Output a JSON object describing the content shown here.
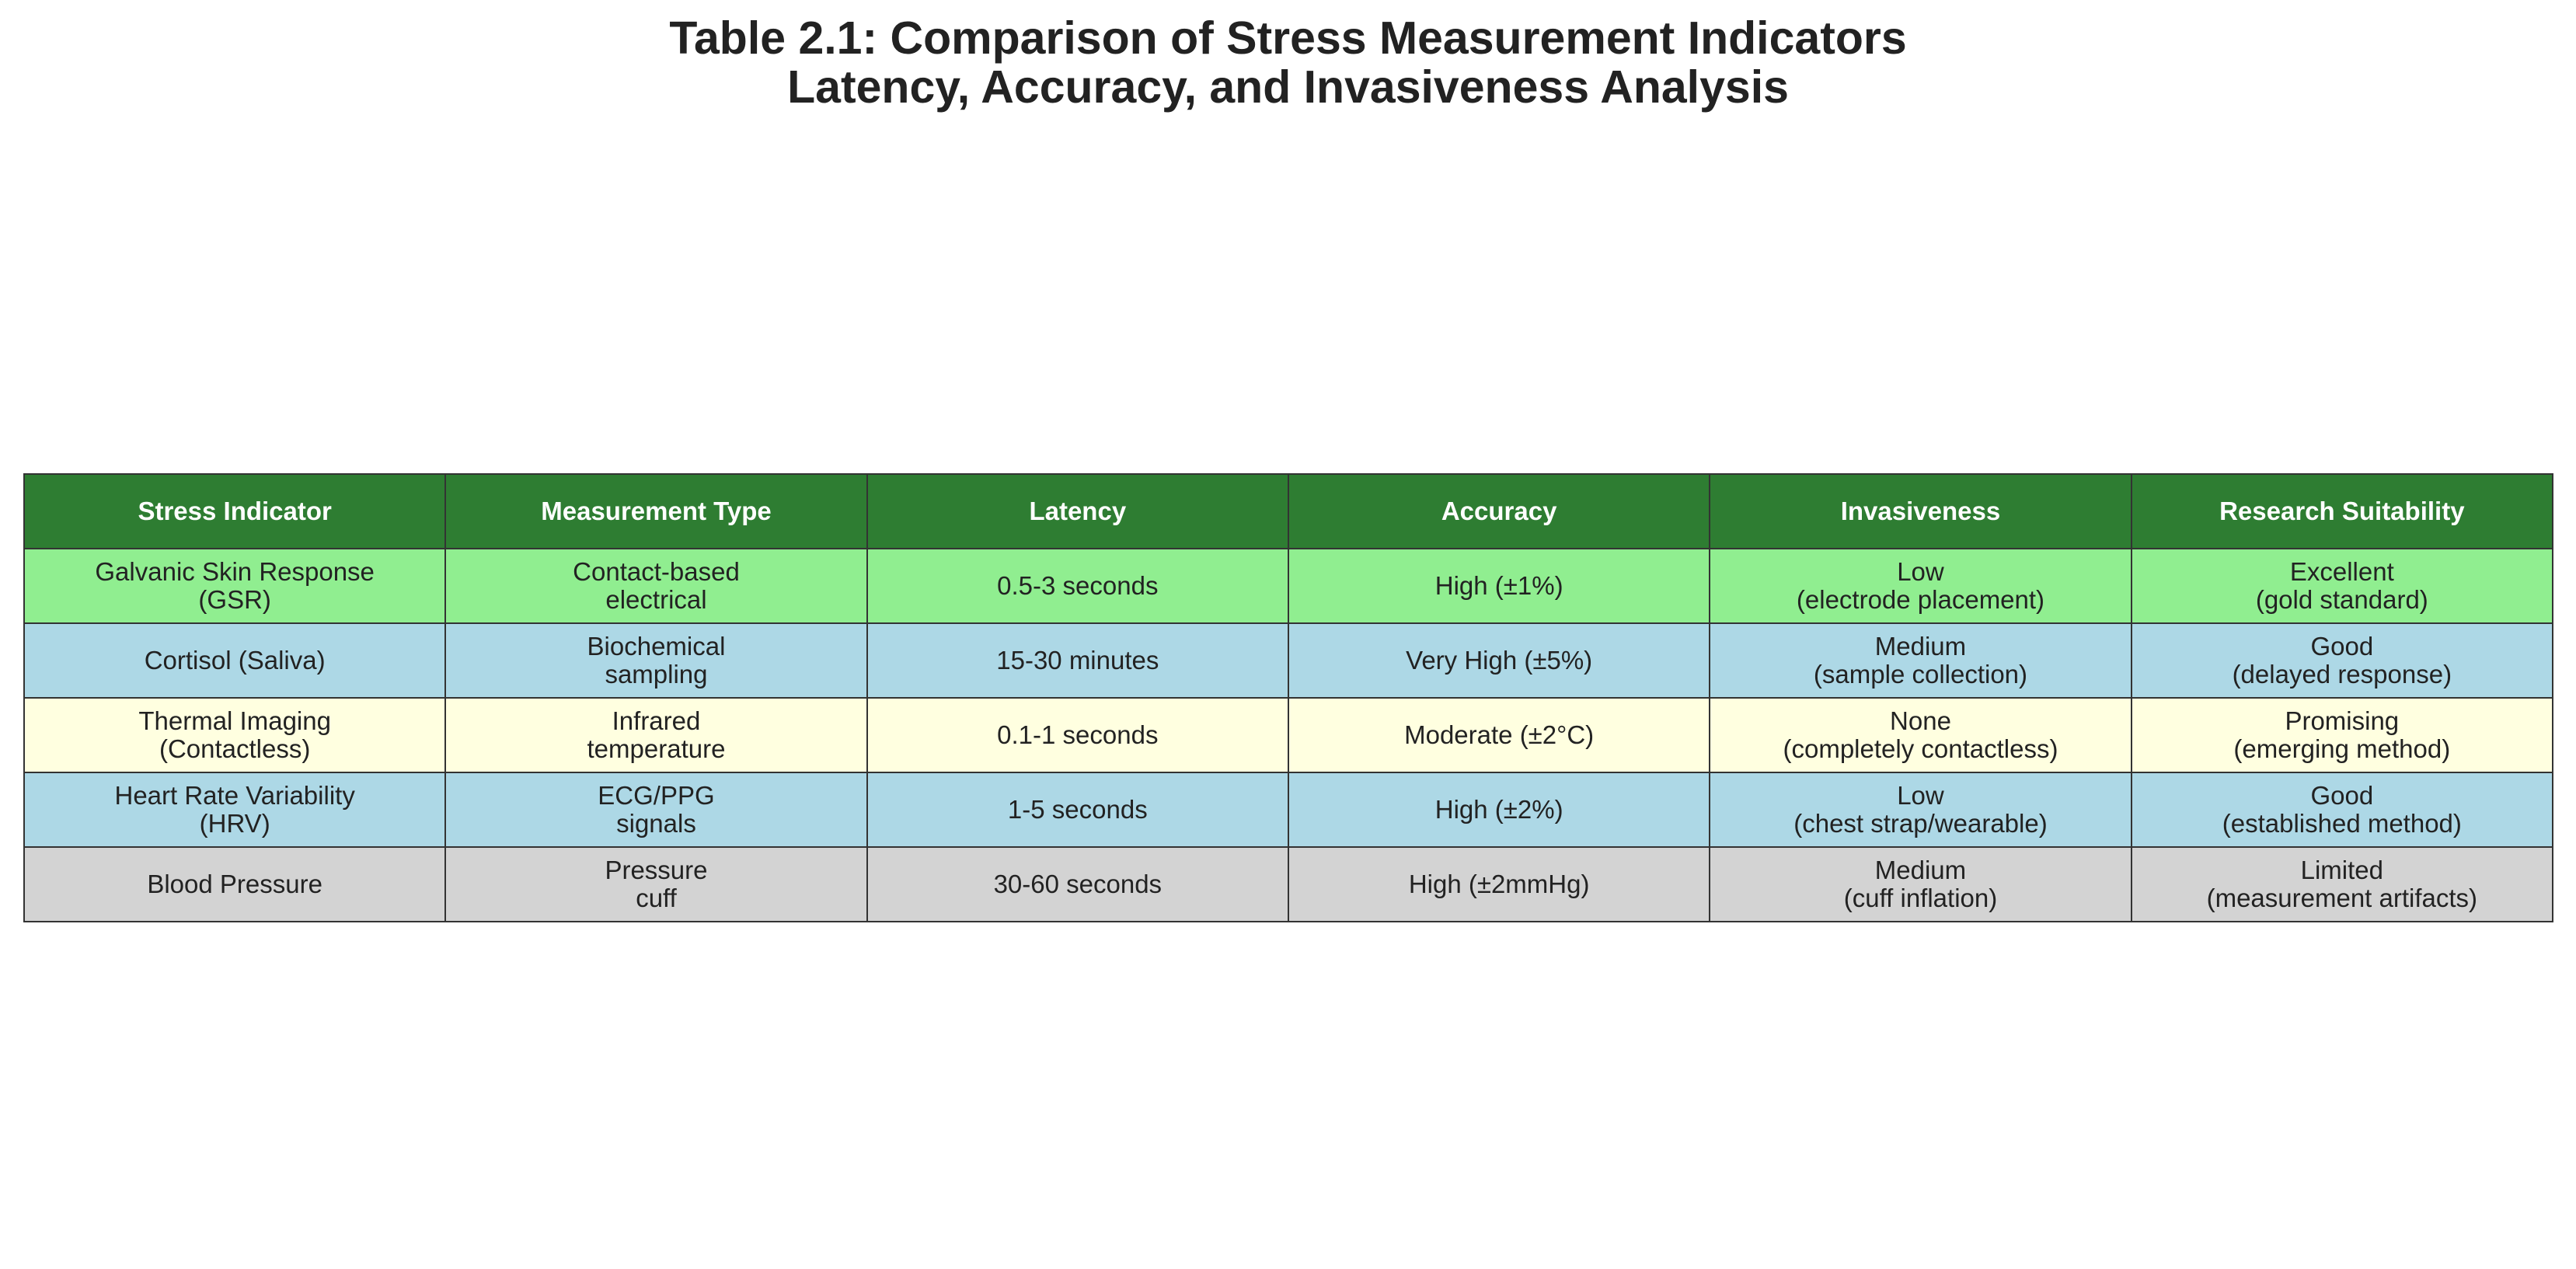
{
  "chart_data": {
    "type": "table",
    "title": [
      "Table 2.1: Comparison of Stress Measurement Indicators",
      "Latency, Accuracy, and Invasiveness Analysis"
    ],
    "header_color": "#2e7d32",
    "columns": [
      "Stress Indicator",
      "Measurement Type",
      "Latency",
      "Accuracy",
      "Invasiveness",
      "Research Suitability"
    ],
    "rows": [
      {
        "color": "#90ee90",
        "cells": [
          [
            "Galvanic Skin Response",
            "(GSR)"
          ],
          [
            "Contact-based",
            "electrical"
          ],
          [
            "0.5-3 seconds"
          ],
          [
            "High (±1%)"
          ],
          [
            "Low",
            "(electrode placement)"
          ],
          [
            "Excellent",
            "(gold standard)"
          ]
        ]
      },
      {
        "color": "#add8e6",
        "cells": [
          [
            "Cortisol (Saliva)"
          ],
          [
            "Biochemical",
            "sampling"
          ],
          [
            "15-30 minutes"
          ],
          [
            "Very High (±5%)"
          ],
          [
            "Medium",
            "(sample collection)"
          ],
          [
            "Good",
            "(delayed response)"
          ]
        ]
      },
      {
        "color": "#ffffe0",
        "cells": [
          [
            "Thermal Imaging",
            "(Contactless)"
          ],
          [
            "Infrared",
            "temperature"
          ],
          [
            "0.1-1 seconds"
          ],
          [
            "Moderate (±2°C)"
          ],
          [
            "None",
            "(completely contactless)"
          ],
          [
            "Promising",
            "(emerging method)"
          ]
        ]
      },
      {
        "color": "#add8e6",
        "cells": [
          [
            "Heart Rate Variability",
            "(HRV)"
          ],
          [
            "ECG/PPG",
            "signals"
          ],
          [
            "1-5 seconds"
          ],
          [
            "High (±2%)"
          ],
          [
            "Low",
            "(chest strap/wearable)"
          ],
          [
            "Good",
            "(established method)"
          ]
        ]
      },
      {
        "color": "#d3d3d3",
        "cells": [
          [
            "Blood Pressure"
          ],
          [
            "Pressure",
            "cuff"
          ],
          [
            "30-60 seconds"
          ],
          [
            "High (±2mmHg)"
          ],
          [
            "Medium",
            "(cuff inflation)"
          ],
          [
            "Limited",
            "(measurement artifacts)"
          ]
        ]
      }
    ]
  }
}
